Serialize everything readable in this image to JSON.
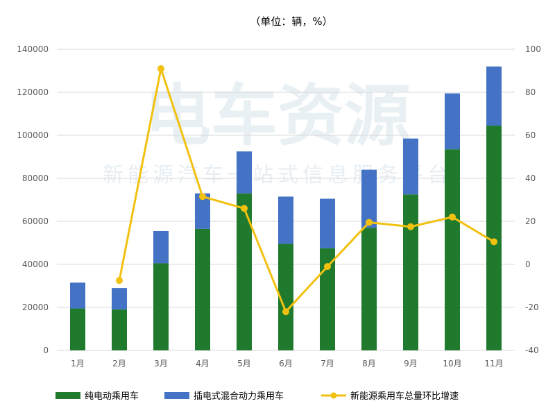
{
  "chart_data": {
    "type": "bar",
    "title": "（单位：辆，%）",
    "categories": [
      "1月",
      "2月",
      "3月",
      "4月",
      "5月",
      "6月",
      "7月",
      "8月",
      "9月",
      "10月",
      "11月"
    ],
    "series": [
      {
        "name": "纯电动乘用车",
        "kind": "stacked-bar",
        "axis": "left",
        "color": "#1f7a2e",
        "values": [
          19500,
          19000,
          40500,
          56500,
          73000,
          49500,
          47500,
          57000,
          72500,
          93500,
          104500
        ]
      },
      {
        "name": "插电式混合动力乘用车",
        "kind": "stacked-bar",
        "axis": "left",
        "color": "#4472c4",
        "values": [
          12000,
          10000,
          15000,
          16500,
          19500,
          22000,
          23000,
          27000,
          26000,
          26000,
          27500
        ]
      },
      {
        "name": "新能源乘用车总量环比增速",
        "kind": "line",
        "axis": "right",
        "color": "#f2c10f",
        "values": [
          null,
          -7.5,
          91,
          31.5,
          26,
          -22,
          -1,
          19.5,
          17.5,
          22,
          10.5
        ]
      }
    ],
    "y_left": {
      "ylim": [
        0,
        140000
      ],
      "ticks": [
        "0",
        "20000",
        "40000",
        "60000",
        "80000",
        "100000",
        "120000",
        "140000"
      ]
    },
    "y_right": {
      "ylim": [
        -40,
        100
      ],
      "ticks": [
        "-40",
        "-20",
        "0",
        "20",
        "40",
        "60",
        "80",
        "100"
      ]
    },
    "grid": true,
    "legend_position": "bottom"
  },
  "watermark": {
    "main": "电车资源",
    "sub": "新能源汽车一站式信息服务平台"
  }
}
